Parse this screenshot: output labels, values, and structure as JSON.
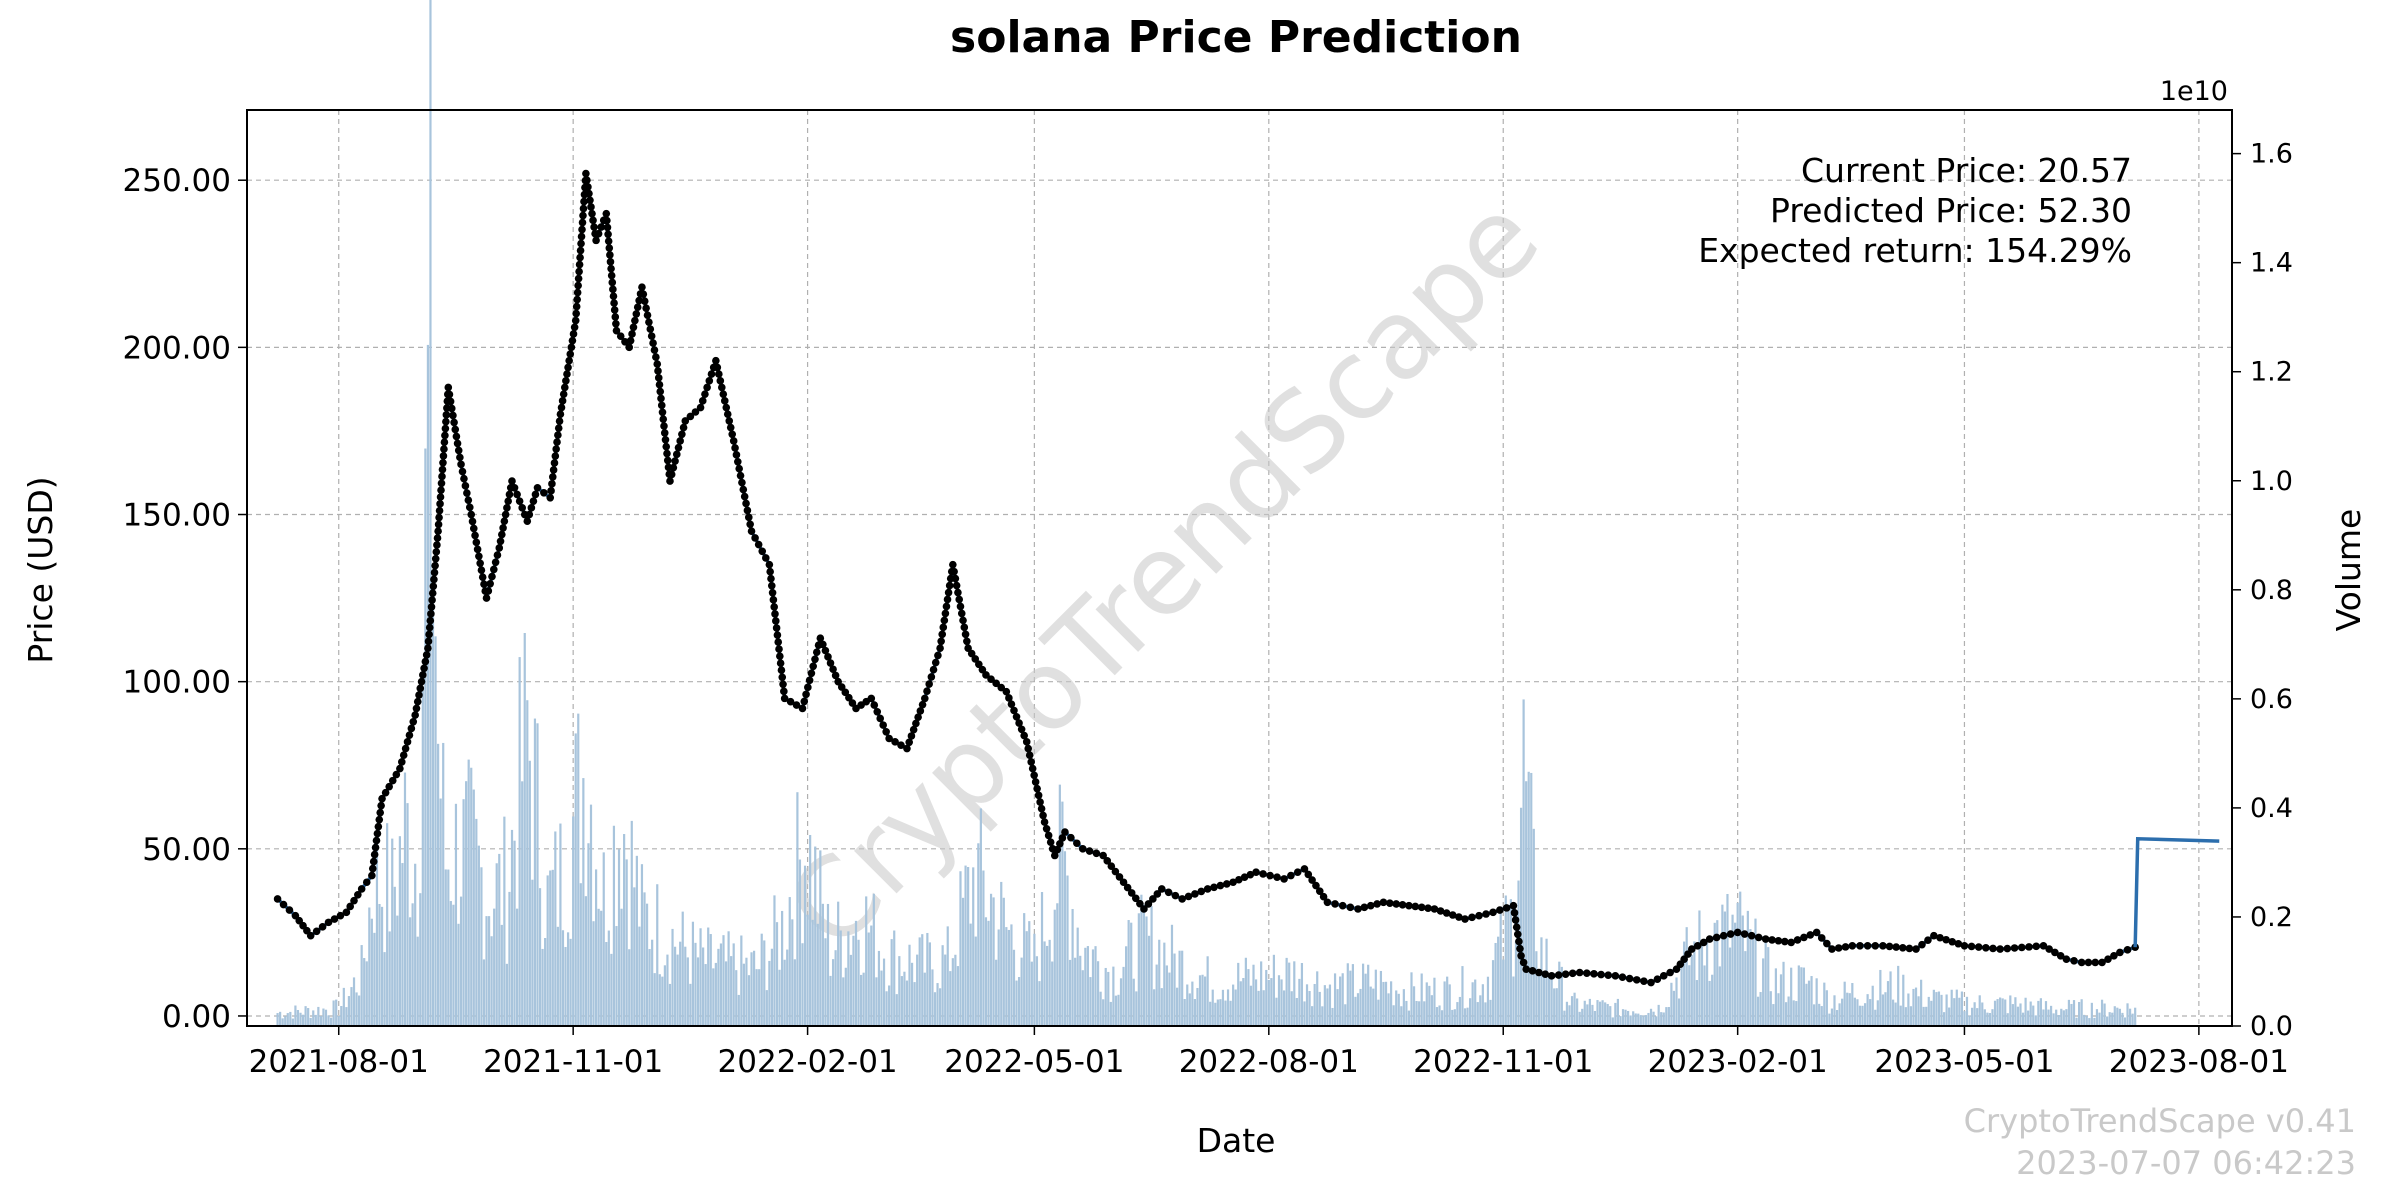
{
  "chart_data": {
    "type": "line",
    "title": "solana Price Prediction",
    "xlabel": "Date",
    "ylabel": "Price (USD)",
    "y2label": "Volume",
    "y2_exponent_label": "1e10",
    "ylim": [
      -3,
      271
    ],
    "y2lim": [
      0,
      1.68
    ],
    "xlim": [
      "2021-06-26",
      "2023-08-14"
    ],
    "grid": true,
    "x_ticks": [
      {
        "date": "2021-08-01",
        "label": "2021-08-01"
      },
      {
        "date": "2021-11-01",
        "label": "2021-11-01"
      },
      {
        "date": "2022-02-01",
        "label": "2022-02-01"
      },
      {
        "date": "2022-05-01",
        "label": "2022-05-01"
      },
      {
        "date": "2022-08-01",
        "label": "2022-08-01"
      },
      {
        "date": "2022-11-01",
        "label": "2022-11-01"
      },
      {
        "date": "2023-02-01",
        "label": "2023-02-01"
      },
      {
        "date": "2023-05-01",
        "label": "2023-05-01"
      },
      {
        "date": "2023-08-01",
        "label": "2023-08-01"
      }
    ],
    "y_ticks": [
      {
        "value": 0,
        "label": "0.00"
      },
      {
        "value": 50,
        "label": "50.00"
      },
      {
        "value": 100,
        "label": "100.00"
      },
      {
        "value": 150,
        "label": "150.00"
      },
      {
        "value": 200,
        "label": "200.00"
      },
      {
        "value": 250,
        "label": "250.00"
      }
    ],
    "y2_ticks": [
      {
        "value": 0.0,
        "label": "0.0"
      },
      {
        "value": 0.2,
        "label": "0.2"
      },
      {
        "value": 0.4,
        "label": "0.4"
      },
      {
        "value": 0.6,
        "label": "0.6"
      },
      {
        "value": 0.8,
        "label": "0.8"
      },
      {
        "value": 1.0,
        "label": "1.0"
      },
      {
        "value": 1.2,
        "label": "1.2"
      },
      {
        "value": 1.4,
        "label": "1.4"
      },
      {
        "value": 1.6,
        "label": "1.6"
      }
    ],
    "price_series": {
      "x": [
        "2021-07-08",
        "2021-07-15",
        "2021-07-21",
        "2021-07-28",
        "2021-08-04",
        "2021-08-10",
        "2021-08-14",
        "2021-08-18",
        "2021-08-25",
        "2021-08-31",
        "2021-09-05",
        "2021-09-09",
        "2021-09-13",
        "2021-09-18",
        "2021-09-22",
        "2021-09-28",
        "2021-10-03",
        "2021-10-08",
        "2021-10-14",
        "2021-10-18",
        "2021-10-23",
        "2021-10-27",
        "2021-11-02",
        "2021-11-06",
        "2021-11-10",
        "2021-11-14",
        "2021-11-18",
        "2021-11-23",
        "2021-11-28",
        "2021-12-04",
        "2021-12-09",
        "2021-12-15",
        "2021-12-21",
        "2021-12-27",
        "2022-01-03",
        "2022-01-10",
        "2022-01-17",
        "2022-01-23",
        "2022-01-30",
        "2022-02-06",
        "2022-02-13",
        "2022-02-20",
        "2022-02-26",
        "2022-03-05",
        "2022-03-12",
        "2022-03-19",
        "2022-03-25",
        "2022-03-30",
        "2022-04-05",
        "2022-04-12",
        "2022-04-20",
        "2022-04-28",
        "2022-05-05",
        "2022-05-09",
        "2022-05-13",
        "2022-05-20",
        "2022-05-28",
        "2022-06-05",
        "2022-06-13",
        "2022-06-20",
        "2022-06-28",
        "2022-07-08",
        "2022-07-18",
        "2022-07-27",
        "2022-08-07",
        "2022-08-15",
        "2022-08-24",
        "2022-09-05",
        "2022-09-15",
        "2022-09-25",
        "2022-10-05",
        "2022-10-17",
        "2022-10-28",
        "2022-11-05",
        "2022-11-08",
        "2022-11-10",
        "2022-11-20",
        "2022-12-01",
        "2022-12-15",
        "2022-12-29",
        "2023-01-08",
        "2023-01-14",
        "2023-01-21",
        "2023-02-01",
        "2023-02-12",
        "2023-02-22",
        "2023-03-04",
        "2023-03-10",
        "2023-03-18",
        "2023-03-30",
        "2023-04-12",
        "2023-04-19",
        "2023-05-01",
        "2023-05-15",
        "2023-06-01",
        "2023-06-10",
        "2023-06-16",
        "2023-06-24",
        "2023-07-01",
        "2023-07-07"
      ],
      "y": [
        35,
        30,
        24,
        28,
        31,
        38,
        42,
        65,
        74,
        90,
        110,
        145,
        188,
        165,
        150,
        125,
        140,
        160,
        148,
        158,
        155,
        180,
        208,
        252,
        232,
        240,
        205,
        200,
        218,
        195,
        160,
        178,
        182,
        196,
        172,
        145,
        135,
        95,
        92,
        113,
        100,
        92,
        95,
        83,
        80,
        95,
        110,
        135,
        110,
        102,
        97,
        82,
        58,
        48,
        55,
        50,
        48,
        40,
        32,
        38,
        35,
        38,
        40,
        43,
        41,
        44,
        34,
        32,
        34,
        33,
        32,
        29,
        31,
        33,
        18,
        14,
        12,
        13,
        12,
        10,
        14,
        20,
        23,
        25,
        23,
        22,
        25,
        20,
        21,
        21,
        20,
        24,
        21,
        20,
        21,
        17,
        16,
        16,
        19,
        20.57
      ],
      "color": "#2c6ead",
      "marker_color": "#000000"
    },
    "prediction_series": {
      "x": [
        "2023-07-07",
        "2023-07-08",
        "2023-08-09"
      ],
      "y": [
        20.57,
        53.0,
        52.3
      ],
      "color": "#2c6ead"
    },
    "volume_series": {
      "unit_exponent": 10,
      "color": "#a8c4dc",
      "x": [
        "2021-07-08",
        "2021-08-01",
        "2021-08-10",
        "2021-08-15",
        "2021-08-22",
        "2021-08-27",
        "2021-09-01",
        "2021-09-06",
        "2021-09-09",
        "2021-09-12",
        "2021-09-16",
        "2021-09-22",
        "2021-09-29",
        "2021-10-06",
        "2021-10-14",
        "2021-10-22",
        "2021-10-28",
        "2021-11-06",
        "2021-11-13",
        "2021-11-20",
        "2021-11-28",
        "2021-12-06",
        "2021-12-14",
        "2021-12-22",
        "2022-01-01",
        "2022-01-12",
        "2022-01-22",
        "2022-01-31",
        "2022-02-10",
        "2022-02-22",
        "2022-03-05",
        "2022-03-18",
        "2022-03-28",
        "2022-04-08",
        "2022-04-20",
        "2022-05-01",
        "2022-05-09",
        "2022-05-12",
        "2022-05-20",
        "2022-06-01",
        "2022-06-13",
        "2022-06-25",
        "2022-07-10",
        "2022-07-25",
        "2022-08-10",
        "2022-08-25",
        "2022-09-10",
        "2022-09-25",
        "2022-10-10",
        "2022-10-25",
        "2022-11-05",
        "2022-11-09",
        "2022-11-15",
        "2022-11-28",
        "2022-12-15",
        "2023-01-01",
        "2023-01-12",
        "2023-01-20",
        "2023-02-01",
        "2023-02-15",
        "2023-03-01",
        "2023-03-10",
        "2023-03-20",
        "2023-04-05",
        "2023-04-20",
        "2023-05-05",
        "2023-05-20",
        "2023-06-05",
        "2023-06-15",
        "2023-07-01",
        "2023-07-07"
      ],
      "y": [
        0.03,
        0.04,
        0.12,
        0.35,
        0.3,
        0.45,
        0.38,
        1.58,
        0.65,
        0.38,
        0.4,
        0.4,
        0.3,
        0.32,
        0.68,
        0.28,
        0.35,
        0.6,
        0.3,
        0.48,
        0.25,
        0.22,
        0.18,
        0.15,
        0.14,
        0.13,
        0.22,
        0.42,
        0.18,
        0.25,
        0.16,
        0.14,
        0.15,
        0.35,
        0.22,
        0.15,
        0.32,
        0.38,
        0.18,
        0.12,
        0.2,
        0.15,
        0.1,
        0.11,
        0.12,
        0.09,
        0.1,
        0.08,
        0.08,
        0.1,
        0.25,
        0.58,
        0.18,
        0.05,
        0.04,
        0.04,
        0.15,
        0.2,
        0.22,
        0.1,
        0.1,
        0.06,
        0.08,
        0.09,
        0.06,
        0.05,
        0.05,
        0.04,
        0.04,
        0.04,
        0.04
      ]
    },
    "annotations": {
      "current_price": "Current Price: 20.57",
      "predicted_price": "Predicted Price: 52.30",
      "expected_return": "Expected return: 154.29%"
    },
    "watermark": "CryptoTrendScape",
    "footer": {
      "version": "CryptoTrendScape v0.41",
      "timestamp": "2023-07-07 06:42:23"
    }
  }
}
